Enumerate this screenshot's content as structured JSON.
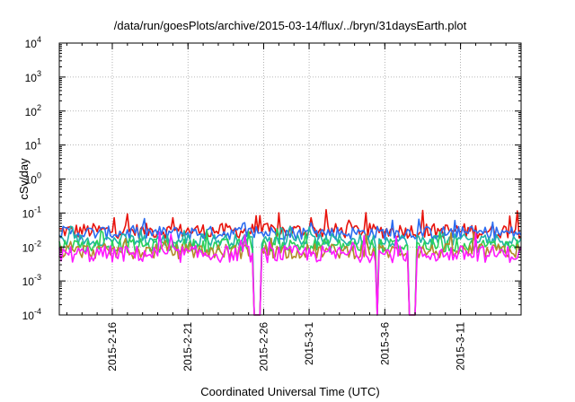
{
  "chart_data": {
    "type": "line",
    "title": "/data/run/goesPlots/archive/2015-03-14/flux/../bryn/31daysEarth.plot",
    "xlabel": "Coordinated Universal Time (UTC)",
    "ylabel": "cSv/day",
    "y_scale": "log",
    "ylim": [
      0.0001,
      10000
    ],
    "xlim": [
      "2015-02-12T12:00",
      "2015-03-15T00:00"
    ],
    "grid": true,
    "y_ticks": [
      {
        "value": 0.0001,
        "base": "10",
        "exp": "-4"
      },
      {
        "value": 0.001,
        "base": "10",
        "exp": "-3"
      },
      {
        "value": 0.01,
        "base": "10",
        "exp": "-2"
      },
      {
        "value": 0.1,
        "base": "10",
        "exp": "-1"
      },
      {
        "value": 1,
        "base": "10",
        "exp": "0"
      },
      {
        "value": 10,
        "base": "10",
        "exp": "1"
      },
      {
        "value": 100,
        "base": "10",
        "exp": "2"
      },
      {
        "value": 1000,
        "base": "10",
        "exp": "3"
      },
      {
        "value": 10000,
        "base": "10",
        "exp": "4"
      }
    ],
    "x_ticks": [
      "2015-2-16",
      "2015-2-21",
      "2015-2-26",
      "2015-3-1",
      "2015-3-6",
      "2015-3-11"
    ],
    "series": [
      {
        "color": "#e8130c",
        "base": 0.03,
        "amp": 0.22,
        "spike": 0.09
      },
      {
        "color": "#2b6cf0",
        "base": 0.026,
        "amp": 0.2,
        "spike": 0.05
      },
      {
        "color": "#1fb3a6",
        "base": 0.016,
        "amp": 0.18,
        "spike": 0.03
      },
      {
        "color": "#2ad15a",
        "base": 0.011,
        "amp": 0.2,
        "spike": 0.025
      },
      {
        "color": "#b48a2a",
        "base": 0.0075,
        "amp": 0.22,
        "spike": 0.02
      },
      {
        "color": "#ff19ff",
        "base": 0.0062,
        "amp": 0.25,
        "spike": 0.02
      }
    ],
    "dropouts": [
      {
        "start": "2015-02-25T08:00",
        "end": "2015-02-25T20:00",
        "min": 0.0001
      },
      {
        "start": "2015-03-05T10:00",
        "end": "2015-03-05T14:00",
        "min": 0.0001
      },
      {
        "start": "2015-03-07T14:00",
        "end": "2015-03-08T02:00",
        "min": 0.0001
      }
    ]
  }
}
